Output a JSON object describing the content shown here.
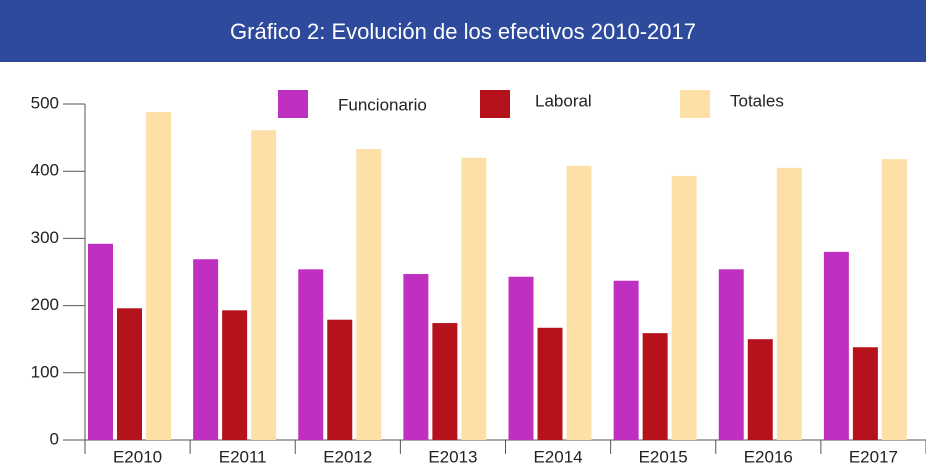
{
  "chart_data": {
    "type": "bar",
    "title": "Gráfico 2: Evolución de los efectivos 2010-2017",
    "categories": [
      "E2010",
      "E2011",
      "E2012",
      "E2013",
      "E2014",
      "E2015",
      "E2016",
      "E2017"
    ],
    "series": [
      {
        "name": "Funcionario",
        "color": "#c030c0",
        "values": [
          292,
          269,
          254,
          247,
          243,
          237,
          254,
          280
        ]
      },
      {
        "name": "Laboral",
        "color": "#b5121b",
        "values": [
          196,
          193,
          179,
          174,
          167,
          159,
          150,
          138
        ]
      },
      {
        "name": "Totales",
        "color": "#fde0a8",
        "values": [
          488,
          461,
          433,
          420,
          408,
          393,
          405,
          418
        ]
      }
    ],
    "ylim": [
      0,
      500
    ],
    "yticks": [
      0,
      100,
      200,
      300,
      400,
      500
    ],
    "grid": false
  }
}
